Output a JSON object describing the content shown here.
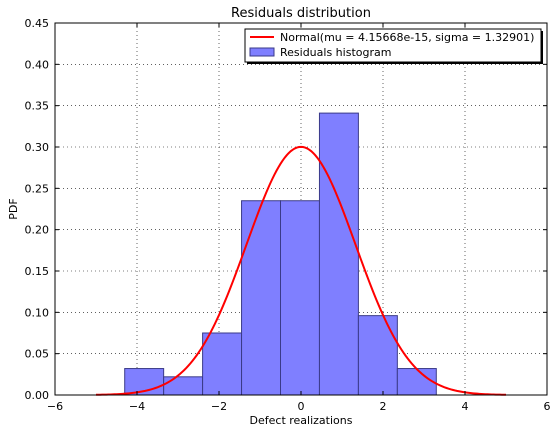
{
  "chart_data": {
    "type": "bar",
    "title": "Residuals distribution",
    "xlabel": "Defect realizations",
    "ylabel": "PDF",
    "xlim": [
      -6,
      6
    ],
    "ylim": [
      0,
      0.45
    ],
    "xticks": [
      -6,
      -4,
      -2,
      0,
      2,
      4,
      6
    ],
    "yticks": [
      0.0,
      0.05,
      0.1,
      0.15,
      0.2,
      0.25,
      0.3,
      0.35,
      0.4,
      0.45
    ],
    "grid": true,
    "legend_position": "top-right",
    "histogram": {
      "name": "Residuals histogram",
      "color": "#7f7fff",
      "edge_color": "#3a3a88",
      "bins": [
        {
          "x0": -4.3,
          "x1": -3.35,
          "value": 0.032
        },
        {
          "x0": -3.35,
          "x1": -2.4,
          "value": 0.022
        },
        {
          "x0": -2.4,
          "x1": -1.45,
          "value": 0.075
        },
        {
          "x0": -1.45,
          "x1": -0.5,
          "value": 0.235
        },
        {
          "x0": -0.5,
          "x1": 0.45,
          "value": 0.235
        },
        {
          "x0": 0.45,
          "x1": 1.4,
          "value": 0.341
        },
        {
          "x0": 1.4,
          "x1": 2.35,
          "value": 0.096
        },
        {
          "x0": 2.35,
          "x1": 3.3,
          "value": 0.032
        }
      ]
    },
    "normal_curve": {
      "name": "Normal(mu = 4.15668e-15, sigma = 1.32901)",
      "color": "#ff0000",
      "mu": 4.15668e-15,
      "sigma": 1.32901,
      "x_range": [
        -5,
        5
      ]
    }
  }
}
